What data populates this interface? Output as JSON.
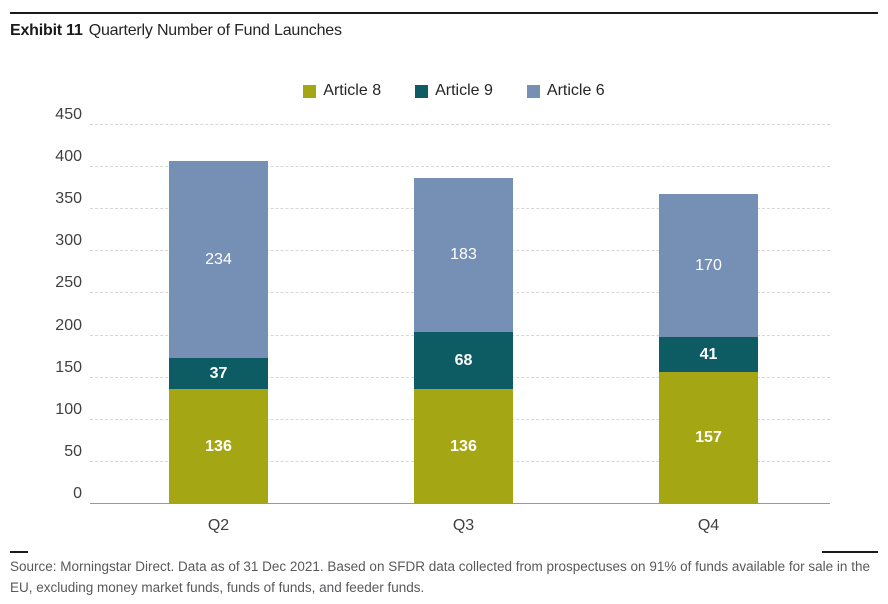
{
  "header": {
    "exhibit_label": "Exhibit 11",
    "title": "Quarterly Number of Fund Launches"
  },
  "chart_data": {
    "type": "bar",
    "stacked": true,
    "title": "Quarterly Number of Fund Launches",
    "categories": [
      "Q2",
      "Q3",
      "Q4"
    ],
    "series": [
      {
        "name": "Article 8",
        "color": "#a5a614",
        "label_weight": "700",
        "values": [
          136,
          136,
          157
        ]
      },
      {
        "name": "Article 9",
        "color": "#0e5c63",
        "label_weight": "700",
        "values": [
          37,
          68,
          41
        ]
      },
      {
        "name": "Article 6",
        "color": "#7590b4",
        "label_weight": "400",
        "values": [
          234,
          183,
          170
        ]
      }
    ],
    "totals": [
      407,
      387,
      368
    ],
    "xlabel": "",
    "ylabel": "",
    "ylim": [
      0,
      450
    ],
    "ytick_step": 50,
    "grid": "horizontal-dashed",
    "legend_position": "top-center",
    "data_labels": "white-centered-in-segment"
  },
  "footer": {
    "source_line1": "Source: Morningstar Direct. Data as of 31 Dec 2021. Based on SFDR data collected from prospectuses on 91% of funds available for sale in the EU,",
    "source_line2": "excluding money market funds, funds of funds, and feeder funds."
  }
}
